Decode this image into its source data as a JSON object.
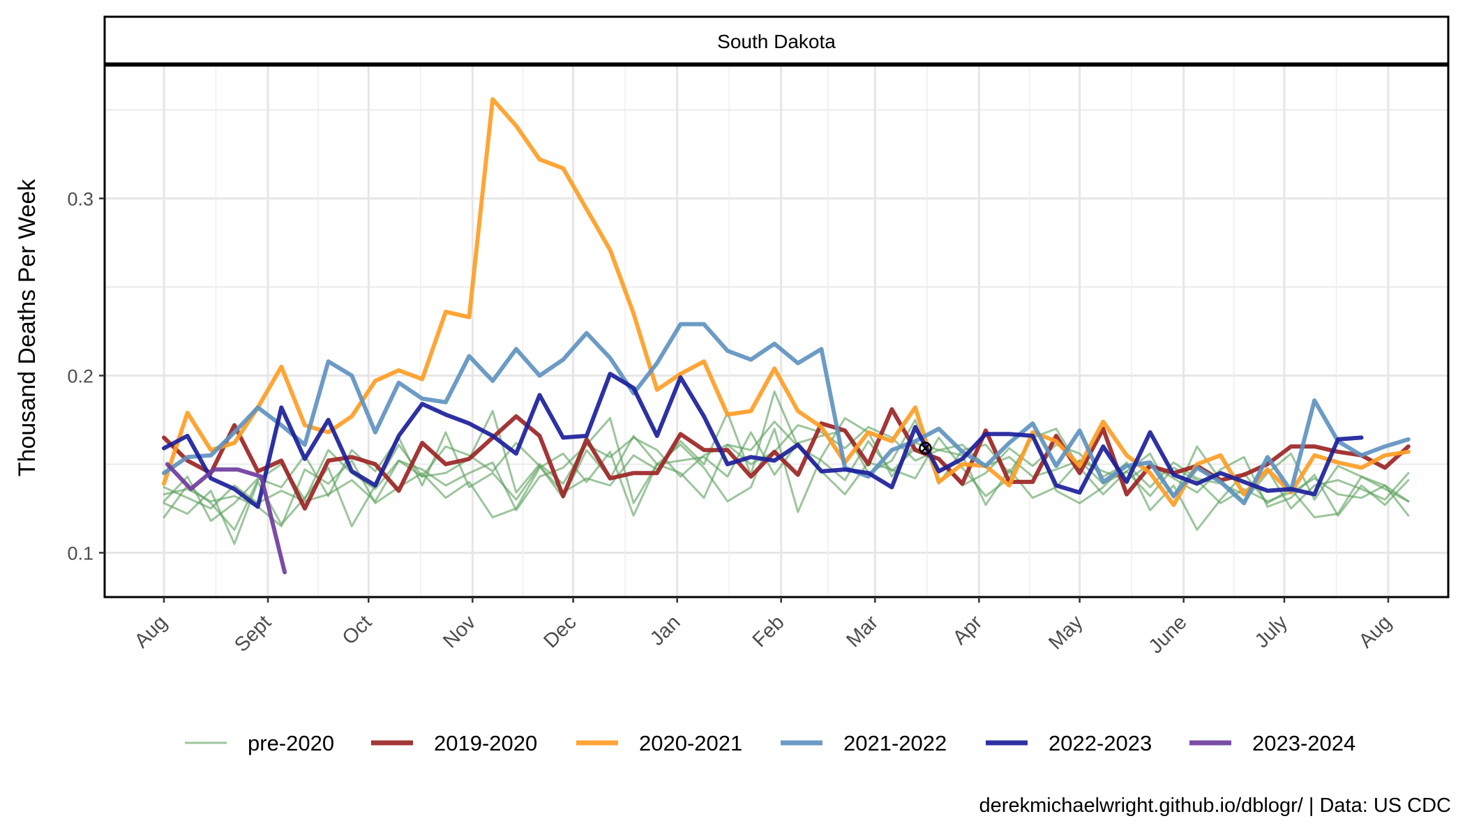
{
  "chart_data": {
    "type": "line",
    "facet_title": "South Dakota",
    "ylabel": "Thousand Deaths Per Week",
    "xlabel": "",
    "caption": "derekmichaelwright.github.io/dblogr/ | Data: US CDC",
    "x_range": [
      0,
      365
    ],
    "ylim": [
      0.075,
      0.375
    ],
    "y_ticks": [
      0.1,
      0.2,
      0.3
    ],
    "y_tick_labels": [
      "0.1",
      "0.2",
      "0.3"
    ],
    "x_ticks": [
      0,
      31,
      61,
      92,
      122,
      153,
      184,
      212,
      243,
      273,
      304,
      334,
      365
    ],
    "x_tick_labels": [
      "Aug",
      "Sept",
      "Oct",
      "Nov",
      "Dec",
      "Jan",
      "Feb",
      "Mar",
      "Apr",
      "May",
      "June",
      "July",
      "Aug"
    ],
    "grid": true,
    "legend_position": "bottom",
    "marker": {
      "day": 227,
      "value": 0.159
    },
    "series": [
      {
        "name": "pre-2020",
        "color": "#5a9e5a",
        "width": 3,
        "opacity": 0.6,
        "thin": true,
        "start": 0,
        "values": [
          0.137,
          0.131,
          0.125,
          0.138,
          0.128,
          0.135,
          0.129,
          0.133,
          0.141,
          0.129,
          0.152,
          0.147,
          0.138,
          0.145,
          0.151,
          0.124,
          0.143,
          0.148,
          0.161,
          0.154,
          0.165,
          0.158,
          0.143,
          0.155,
          0.161,
          0.15,
          0.157,
          0.172,
          0.168,
          0.159,
          0.171,
          0.165,
          0.152,
          0.158,
          0.161,
          0.149,
          0.154,
          0.143,
          0.147,
          0.152,
          0.139,
          0.146,
          0.132,
          0.148,
          0.141,
          0.128,
          0.136,
          0.129,
          0.134,
          0.142,
          0.133,
          0.131,
          0.138,
          0.129
        ]
      },
      {
        "name": "",
        "color": "#5a9e5a",
        "width": 3,
        "opacity": 0.6,
        "thin": true,
        "start": 0,
        "values": [
          0.12,
          0.138,
          0.128,
          0.113,
          0.141,
          0.15,
          0.13,
          0.158,
          0.145,
          0.136,
          0.152,
          0.143,
          0.16,
          0.155,
          0.146,
          0.162,
          0.149,
          0.131,
          0.158,
          0.142,
          0.166,
          0.15,
          0.145,
          0.131,
          0.161,
          0.158,
          0.174,
          0.16,
          0.152,
          0.141,
          0.163,
          0.146,
          0.159,
          0.153,
          0.138,
          0.145,
          0.159,
          0.149,
          0.161,
          0.156,
          0.143,
          0.15,
          0.137,
          0.151,
          0.142,
          0.139,
          0.133,
          0.147,
          0.125,
          0.138,
          0.141,
          0.136,
          0.13,
          0.145
        ]
      },
      {
        "name": "",
        "color": "#5a9e5a",
        "width": 3,
        "opacity": 0.6,
        "thin": true,
        "start": 0,
        "values": [
          0.128,
          0.122,
          0.135,
          0.105,
          0.14,
          0.116,
          0.131,
          0.148,
          0.115,
          0.138,
          0.161,
          0.143,
          0.145,
          0.153,
          0.18,
          0.134,
          0.15,
          0.139,
          0.161,
          0.176,
          0.128,
          0.15,
          0.152,
          0.154,
          0.143,
          0.168,
          0.144,
          0.162,
          0.166,
          0.169,
          0.145,
          0.152,
          0.175,
          0.139,
          0.158,
          0.161,
          0.145,
          0.165,
          0.17,
          0.148,
          0.133,
          0.146,
          0.156,
          0.131,
          0.16,
          0.141,
          0.129,
          0.145,
          0.156,
          0.13,
          0.149,
          0.143,
          0.138,
          0.121
        ]
      },
      {
        "name": "",
        "color": "#5a9e5a",
        "width": 3,
        "opacity": 0.6,
        "thin": true,
        "start": 0,
        "values": [
          0.133,
          0.136,
          0.129,
          0.132,
          0.126,
          0.115,
          0.147,
          0.139,
          0.152,
          0.128,
          0.137,
          0.145,
          0.131,
          0.14,
          0.12,
          0.125,
          0.148,
          0.156,
          0.14,
          0.157,
          0.121,
          0.15,
          0.161,
          0.148,
          0.129,
          0.137,
          0.17,
          0.123,
          0.154,
          0.176,
          0.168,
          0.143,
          0.162,
          0.158,
          0.155,
          0.127,
          0.147,
          0.131,
          0.137,
          0.152,
          0.146,
          0.141,
          0.15,
          0.142,
          0.134,
          0.147,
          0.154,
          0.126,
          0.131,
          0.144,
          0.121,
          0.138,
          0.127,
          0.141
        ]
      },
      {
        "name": "",
        "color": "#5a9e5a",
        "width": 3,
        "opacity": 0.6,
        "thin": true,
        "start": 0,
        "values": [
          0.129,
          0.143,
          0.118,
          0.128,
          0.142,
          0.137,
          0.155,
          0.132,
          0.158,
          0.146,
          0.165,
          0.138,
          0.168,
          0.137,
          0.145,
          0.13,
          0.149,
          0.134,
          0.142,
          0.138,
          0.155,
          0.147,
          0.163,
          0.15,
          0.179,
          0.144,
          0.191,
          0.16,
          0.146,
          0.133,
          0.151,
          0.147,
          0.142,
          0.165,
          0.148,
          0.132,
          0.142,
          0.167,
          0.135,
          0.128,
          0.137,
          0.151,
          0.124,
          0.138,
          0.113,
          0.13,
          0.145,
          0.128,
          0.136,
          0.12,
          0.122,
          0.143,
          0.136,
          0.129
        ]
      },
      {
        "name": "2019-2020",
        "color": "#9c2525",
        "width": 6,
        "opacity": 0.92,
        "start": 0,
        "values": [
          0.165,
          0.152,
          0.145,
          0.172,
          0.146,
          0.152,
          0.125,
          0.152,
          0.154,
          0.15,
          0.135,
          0.162,
          0.15,
          0.153,
          0.165,
          0.177,
          0.166,
          0.132,
          0.164,
          0.142,
          0.145,
          0.145,
          0.167,
          0.158,
          0.158,
          0.143,
          0.157,
          0.144,
          0.173,
          0.169,
          0.15,
          0.181,
          0.158,
          0.153,
          0.139,
          0.169,
          0.14,
          0.14,
          0.166,
          0.145,
          0.17,
          0.133,
          0.149,
          0.145,
          0.149,
          0.141,
          0.144,
          0.15,
          0.16,
          0.16,
          0.157,
          0.155,
          0.148,
          0.16
        ]
      },
      {
        "name": "2020-2021",
        "color": "#ff9d24",
        "width": 6,
        "opacity": 0.92,
        "start": 0,
        "values": [
          0.139,
          0.179,
          0.158,
          0.162,
          0.182,
          0.205,
          0.172,
          0.168,
          0.177,
          0.197,
          0.203,
          0.198,
          0.236,
          0.233,
          0.356,
          0.341,
          0.322,
          0.317,
          0.294,
          0.271,
          0.235,
          0.192,
          0.201,
          0.208,
          0.178,
          0.18,
          0.204,
          0.18,
          0.171,
          0.151,
          0.168,
          0.163,
          0.182,
          0.14,
          0.15,
          0.149,
          0.138,
          0.168,
          0.163,
          0.149,
          0.174,
          0.155,
          0.145,
          0.127,
          0.15,
          0.155,
          0.133,
          0.147,
          0.134,
          0.155,
          0.151,
          0.148,
          0.155,
          0.157
        ]
      },
      {
        "name": "2021-2022",
        "color": "#5f92c0",
        "width": 6,
        "opacity": 0.92,
        "start": 0,
        "values": [
          0.145,
          0.154,
          0.155,
          0.168,
          0.182,
          0.172,
          0.161,
          0.208,
          0.2,
          0.168,
          0.196,
          0.187,
          0.185,
          0.211,
          0.197,
          0.215,
          0.2,
          0.209,
          0.224,
          0.21,
          0.19,
          0.207,
          0.229,
          0.229,
          0.214,
          0.209,
          0.218,
          0.207,
          0.215,
          0.148,
          0.143,
          0.158,
          0.163,
          0.17,
          0.157,
          0.149,
          0.162,
          0.173,
          0.149,
          0.169,
          0.14,
          0.149,
          0.151,
          0.132,
          0.148,
          0.14,
          0.128,
          0.154,
          0.135,
          0.186,
          0.163,
          0.155,
          0.16,
          0.164
        ]
      },
      {
        "name": "2022-2023",
        "color": "#1b1f9b",
        "width": 6,
        "opacity": 0.92,
        "start": 0,
        "values": [
          0.159,
          0.166,
          0.142,
          0.136,
          0.126,
          0.182,
          0.153,
          0.175,
          0.146,
          0.138,
          0.166,
          0.184,
          0.178,
          0.173,
          0.166,
          0.156,
          0.189,
          0.165,
          0.166,
          0.201,
          0.193,
          0.166,
          0.199,
          0.177,
          0.15,
          0.154,
          0.152,
          0.161,
          0.146,
          0.147,
          0.145,
          0.137,
          0.171,
          0.146,
          0.153,
          0.167,
          0.167,
          0.166,
          0.138,
          0.134,
          0.16,
          0.14,
          0.168,
          0.144,
          0.139,
          0.145,
          0.14,
          0.135,
          0.136,
          0.133,
          0.164,
          0.165
        ]
      },
      {
        "name": "2023-2024",
        "color": "#6f3d9e",
        "width": 6,
        "opacity": 0.92,
        "start": 1,
        "values": [
          0.15,
          0.136,
          0.147,
          0.147,
          0.143,
          0.089
        ]
      }
    ]
  }
}
